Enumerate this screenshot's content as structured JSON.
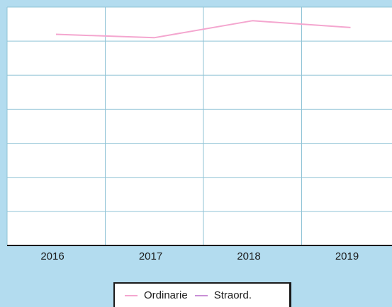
{
  "chart_data": {
    "type": "line",
    "categories": [
      "2016",
      "2017",
      "2018",
      "2019"
    ],
    "series": [
      {
        "name": "Ordinarie",
        "color": "#f4a6cf",
        "values": [
          6.2,
          6.1,
          6.6,
          6.4
        ]
      },
      {
        "name": "Straord.",
        "color": "#c98fd6",
        "values": [
          0,
          0,
          0,
          null
        ]
      }
    ],
    "ylim": [
      0,
      7
    ],
    "grid": true,
    "legend_position": "bottom"
  }
}
